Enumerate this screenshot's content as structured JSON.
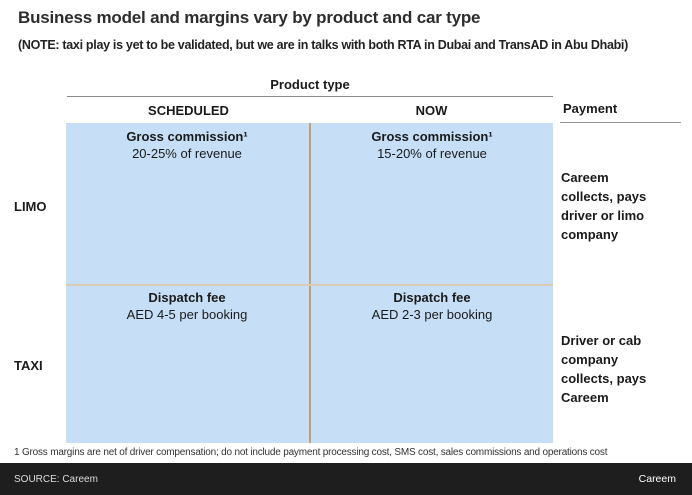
{
  "slide": {
    "title": "Business model and margins vary by product and car type",
    "note": "(NOTE: taxi play is yet to be validated, but we are in talks with both RTA in Dubai and TransAD in Abu Dhabi)"
  },
  "matrix": {
    "column_group_label": "Product type",
    "payment_label": "Payment",
    "columns": [
      "SCHEDULED",
      "NOW"
    ],
    "rows": [
      {
        "label": "LIMO",
        "cells": [
          {
            "title": "Gross commission¹",
            "value": "20-25% of revenue"
          },
          {
            "title": "Gross commission¹",
            "value": "15-20% of revenue"
          }
        ],
        "payment": "Careem\ncollects, pays\ndriver or limo\ncompany"
      },
      {
        "label": "TAXI",
        "cells": [
          {
            "title": "Dispatch fee",
            "value": "AED 4-5 per booking"
          },
          {
            "title": "Dispatch fee",
            "value": "AED 2-3 per booking"
          }
        ],
        "payment": "Driver or cab\ncompany\ncollects, pays\nCareem"
      }
    ]
  },
  "footnote": "1 Gross margins are net of driver compensation; do not include payment processing cost, SMS cost, sales commissions and operations cost",
  "footer": {
    "source": "SOURCE: Careem",
    "brand": "Careem"
  },
  "colors": {
    "cell_bg": "#C6DFF7",
    "divider_vertical": "#C79D6E",
    "divider_horizontal": "#D9CCB2",
    "footer_bg": "#1E1E1E"
  }
}
